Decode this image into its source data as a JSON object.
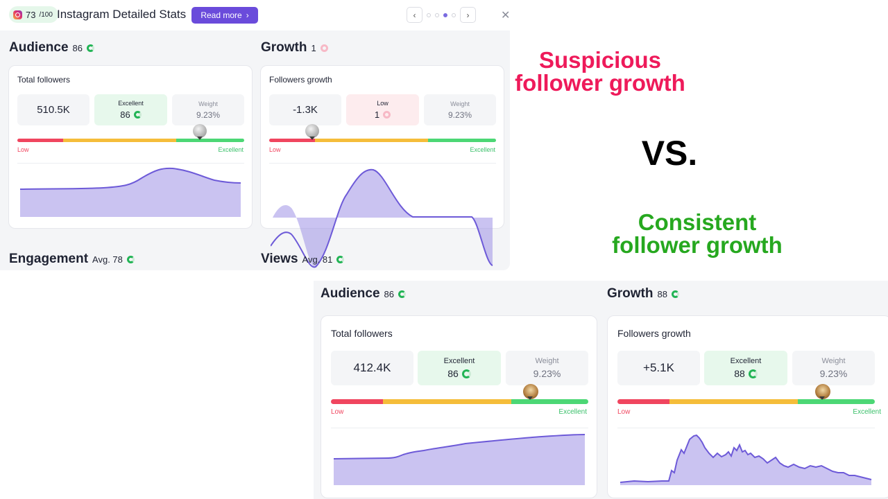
{
  "top": {
    "score": "73",
    "score_max": "/100",
    "title": "Instagram Detailed Stats",
    "read_more": "Read more",
    "pager_prev": "‹",
    "pager_next": "›",
    "close": "✕",
    "audience": {
      "title": "Audience",
      "score": "86",
      "card_title": "Total followers",
      "value": "510.5K",
      "rating_label": "Excellent",
      "rating_score": "86",
      "weight_label": "Weight",
      "weight_value": "9.23%",
      "bar_low": "Low",
      "bar_high": "Excellent",
      "marker_level": 0.8
    },
    "growth": {
      "title": "Growth",
      "score": "1",
      "card_title": "Followers growth",
      "value": "-1.3K",
      "rating_label": "Low",
      "rating_score": "1",
      "weight_label": "Weight",
      "weight_value": "9.23%",
      "bar_low": "Low",
      "bar_high": "Excellent",
      "marker_level": 0.19
    },
    "engagement": {
      "title": "Engagement",
      "score": "Avg. 78"
    },
    "views": {
      "title": "Views",
      "score": "Avg. 81"
    }
  },
  "bottom": {
    "audience": {
      "title": "Audience",
      "score": "86",
      "card_title": "Total followers",
      "value": "412.4K",
      "rating_label": "Excellent",
      "rating_score": "86",
      "weight_label": "Weight",
      "weight_value": "9.23%",
      "bar_low": "Low",
      "bar_high": "Excellent",
      "marker_level": 0.78
    },
    "growth": {
      "title": "Growth",
      "score": "88",
      "card_title": "Followers growth",
      "value": "+5.1K",
      "rating_label": "Excellent",
      "rating_score": "88",
      "weight_label": "Weight",
      "weight_value": "9.23%",
      "bar_low": "Low",
      "bar_high": "Excellent",
      "marker_level": 0.8
    }
  },
  "overlay": {
    "suspicious_line1": "Suspicious",
    "suspicious_line2": "follower growth",
    "vs": "VS.",
    "consistent_line1": "Consistent",
    "consistent_line2": "follower growth"
  },
  "colors": {
    "accent": "#6a4bdb",
    "low": "#f0455f",
    "mid": "#f5bd3a",
    "high": "#4cd775",
    "suspicious": "#ee1a5a",
    "consistent": "#26a81f"
  }
}
